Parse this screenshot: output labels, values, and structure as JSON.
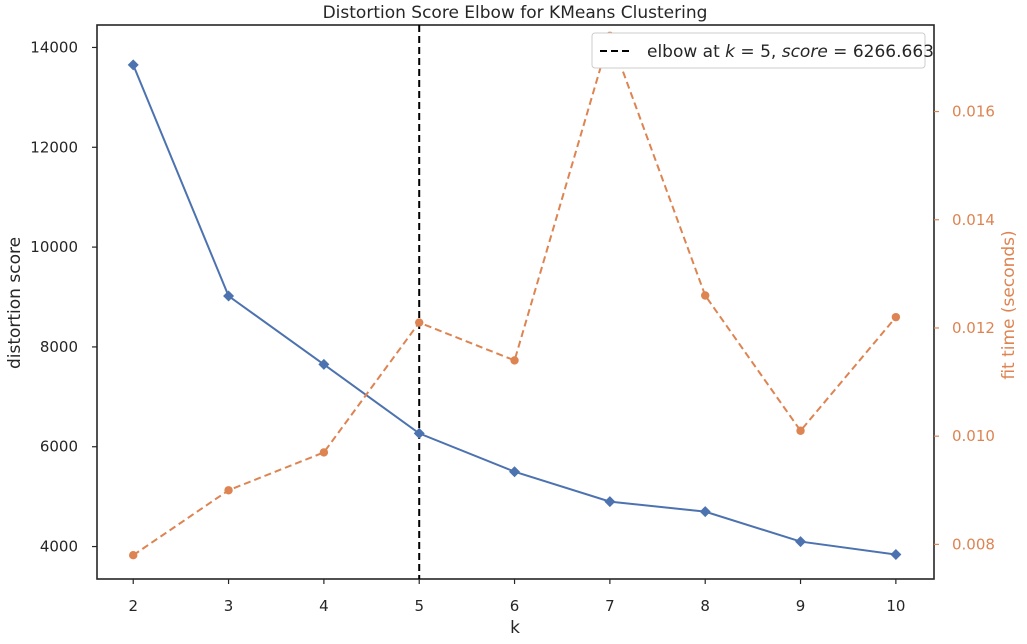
{
  "chart_data": {
    "type": "line",
    "title": "Distortion Score Elbow for KMeans Clustering",
    "xlabel": "k",
    "ylabel": "distortion score",
    "y2label": "fit time (seconds)",
    "x": [
      2,
      3,
      4,
      5,
      6,
      7,
      8,
      9,
      10
    ],
    "xlim": [
      1.62,
      10.4
    ],
    "ylim": [
      3350,
      14450
    ],
    "y2lim": [
      0.00736,
      0.0176
    ],
    "yticks": [
      4000,
      6000,
      8000,
      10000,
      12000,
      14000
    ],
    "y2ticks": [
      0.008,
      0.01,
      0.012,
      0.014,
      0.016
    ],
    "y2tick_labels": [
      "0.008",
      "0.010",
      "0.012",
      "0.014",
      "0.016"
    ],
    "series": [
      {
        "axis": "left",
        "marker": "diamond",
        "linestyle": "solid",
        "color": "#4c72b0",
        "values": [
          13650,
          9020,
          7650,
          6266.663,
          5500,
          4900,
          4700,
          4100,
          3840
        ]
      },
      {
        "axis": "right",
        "marker": "circle",
        "linestyle": "dashed",
        "color": "#dd8452",
        "values": [
          0.0078,
          0.009,
          0.0097,
          0.0121,
          0.0114,
          0.0174,
          0.0126,
          0.0101,
          0.0122
        ]
      }
    ],
    "elbow": {
      "k": 5,
      "score": 6266.663,
      "color": "#000000",
      "label_prefix": "elbow at ",
      "label_k": "k",
      "label_eq1": " = 5, ",
      "label_score": "score",
      "label_eq2": " = 6266.663"
    },
    "legend_placement": "top-right",
    "grid": false,
    "colors": {
      "axis": "#262626",
      "left_series": "#4c72b0",
      "right_series": "#dd8452"
    }
  }
}
